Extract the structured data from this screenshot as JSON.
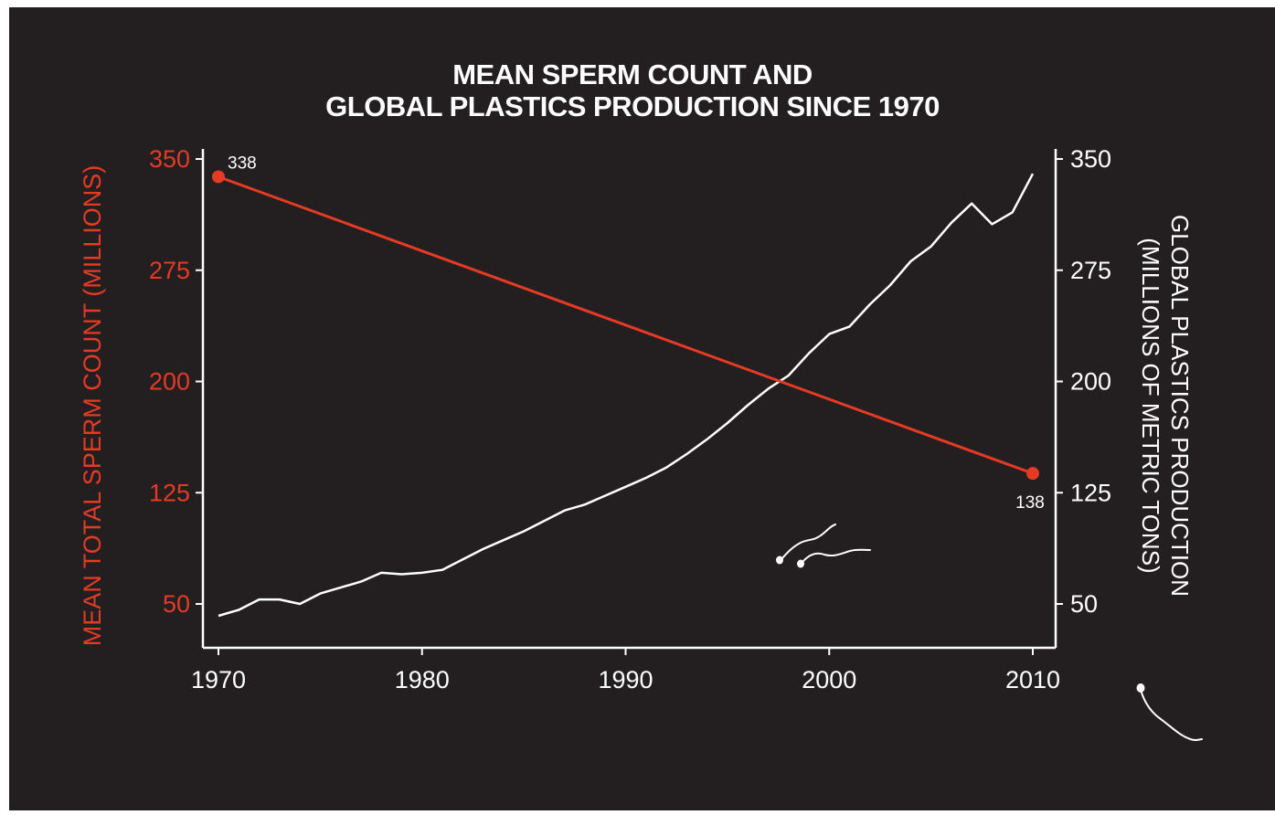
{
  "colors": {
    "background": "#231f20",
    "sperm": "#e53a24",
    "plastics": "#ffffff"
  },
  "chart_data": {
    "type": "line",
    "title": "MEAN SPERM COUNT AND GLOBAL PLASTICS PRODUCTION SINCE 1970",
    "title_lines": [
      "MEAN SPERM COUNT AND",
      "GLOBAL PLASTICS PRODUCTION SINCE 1970"
    ],
    "x_ticks": [
      "1970",
      "1980",
      "1990",
      "2000",
      "2010"
    ],
    "xlim": [
      1970,
      2010
    ],
    "y_left": {
      "label": "MEAN TOTAL SPERM COUNT (MILLIONS)",
      "ticks": [
        "50",
        "125",
        "200",
        "275",
        "350"
      ],
      "lim": [
        35,
        355
      ]
    },
    "y_right": {
      "label_lines": [
        "GLOBAL PLASTICS PRODUCTION",
        "(MILLIONS OF METRIC TONS)"
      ],
      "ticks": [
        "50",
        "125",
        "200",
        "275",
        "350"
      ],
      "lim": [
        35,
        355
      ]
    },
    "grid": false,
    "series": [
      {
        "axis": "left",
        "color": "#e53a24",
        "x": [
          1970,
          2010
        ],
        "y": [
          338,
          138
        ],
        "labels": [
          "338",
          "138"
        ]
      },
      {
        "axis": "right",
        "color": "#ffffff",
        "x": [
          1970,
          1971,
          1972,
          1973,
          1974,
          1975,
          1976,
          1977,
          1978,
          1979,
          1980,
          1981,
          1982,
          1983,
          1984,
          1985,
          1986,
          1987,
          1988,
          1989,
          1990,
          1991,
          1992,
          1993,
          1994,
          1995,
          1996,
          1997,
          1998,
          1999,
          2000,
          2001,
          2002,
          2003,
          2004,
          2005,
          2006,
          2007,
          2008,
          2009,
          2010
        ],
        "y": [
          42,
          46,
          53,
          53,
          50,
          57,
          61,
          65,
          71,
          70,
          71,
          73,
          80,
          87,
          93,
          99,
          106,
          113,
          117,
          123,
          129,
          135,
          142,
          151,
          161,
          172,
          184,
          195,
          204,
          219,
          232,
          237,
          252,
          265,
          281,
          291,
          307,
          320,
          306,
          314,
          340
        ]
      }
    ]
  }
}
